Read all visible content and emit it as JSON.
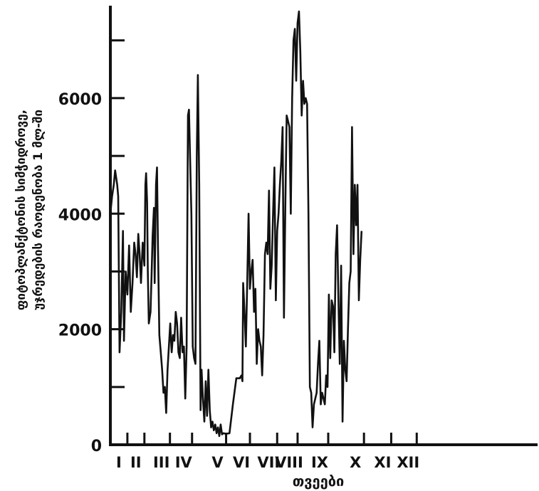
{
  "chart_data": {
    "type": "line",
    "title": "",
    "xlabel": "თვეები",
    "ylabel_lines": [
      "ფიტოპლანქტონის სიმჭიდროვე,",
      "უჯრედების რაოდენობა 1 მლ-ში"
    ],
    "x_unit": "month",
    "xlim": [
      0,
      12.55
    ],
    "ylim": [
      0,
      7600
    ],
    "y_ticks": [
      0,
      2000,
      4000,
      6000
    ],
    "y_minor_ticks": [
      1000,
      3000,
      5000,
      7000
    ],
    "x_ticks": [
      {
        "label": "I",
        "x": 0.5
      },
      {
        "label": "II",
        "x": 1.0
      },
      {
        "label": "III",
        "x": 1.75
      },
      {
        "label": "IV",
        "x": 2.4
      },
      {
        "label": "V",
        "x": 3.4
      },
      {
        "label": "VI",
        "x": 4.1
      },
      {
        "label": "VII",
        "x": 4.9
      },
      {
        "label": "VIII",
        "x": 5.5
      },
      {
        "label": "IX",
        "x": 6.4
      },
      {
        "label": "X",
        "x": 7.45
      },
      {
        "label": "XI",
        "x": 8.25
      },
      {
        "label": "XII",
        "x": 9.0
      }
    ],
    "grid": false,
    "series": [
      {
        "color": "#111111",
        "points": [
          [
            0.0,
            4000
          ],
          [
            0.05,
            4300
          ],
          [
            0.1,
            4500
          ],
          [
            0.14,
            4750
          ],
          [
            0.2,
            4500
          ],
          [
            0.23,
            4300
          ],
          [
            0.27,
            1600
          ],
          [
            0.32,
            2300
          ],
          [
            0.37,
            3700
          ],
          [
            0.4,
            1800
          ],
          [
            0.45,
            3000
          ],
          [
            0.5,
            2600
          ],
          [
            0.55,
            3450
          ],
          [
            0.6,
            2300
          ],
          [
            0.65,
            2800
          ],
          [
            0.7,
            3500
          ],
          [
            0.74,
            3300
          ],
          [
            0.78,
            2900
          ],
          [
            0.82,
            3650
          ],
          [
            0.86,
            3300
          ],
          [
            0.9,
            2800
          ],
          [
            0.95,
            3500
          ],
          [
            1.0,
            3100
          ],
          [
            1.03,
            4500
          ],
          [
            1.05,
            4700
          ],
          [
            1.08,
            4200
          ],
          [
            1.1,
            3000
          ],
          [
            1.13,
            2100
          ],
          [
            1.18,
            2300
          ],
          [
            1.21,
            2900
          ],
          [
            1.24,
            3600
          ],
          [
            1.28,
            4100
          ],
          [
            1.3,
            2800
          ],
          [
            1.34,
            4500
          ],
          [
            1.37,
            4800
          ],
          [
            1.4,
            3400
          ],
          [
            1.44,
            1900
          ],
          [
            1.48,
            1600
          ],
          [
            1.52,
            1300
          ],
          [
            1.56,
            900
          ],
          [
            1.6,
            1000
          ],
          [
            1.64,
            550
          ],
          [
            1.68,
            1300
          ],
          [
            1.72,
            1700
          ],
          [
            1.76,
            2100
          ],
          [
            1.8,
            1600
          ],
          [
            1.84,
            1900
          ],
          [
            1.88,
            1800
          ],
          [
            1.92,
            2300
          ],
          [
            1.96,
            2100
          ],
          [
            2.0,
            1600
          ],
          [
            2.04,
            1500
          ],
          [
            2.08,
            2200
          ],
          [
            2.12,
            1600
          ],
          [
            2.16,
            1700
          ],
          [
            2.2,
            800
          ],
          [
            2.24,
            1700
          ],
          [
            2.28,
            5700
          ],
          [
            2.31,
            5800
          ],
          [
            2.34,
            5000
          ],
          [
            2.38,
            4000
          ],
          [
            2.42,
            1700
          ],
          [
            2.46,
            1500
          ],
          [
            2.5,
            1400
          ],
          [
            2.54,
            5000
          ],
          [
            2.57,
            6400
          ],
          [
            2.61,
            4500
          ],
          [
            2.65,
            600
          ],
          [
            2.68,
            1300
          ],
          [
            2.72,
            800
          ],
          [
            2.76,
            400
          ],
          [
            2.8,
            1100
          ],
          [
            2.84,
            500
          ],
          [
            2.88,
            1300
          ],
          [
            2.92,
            600
          ],
          [
            2.96,
            300
          ],
          [
            3.0,
            400
          ],
          [
            3.04,
            250
          ],
          [
            3.08,
            350
          ],
          [
            3.12,
            200
          ],
          [
            3.16,
            300
          ],
          [
            3.2,
            150
          ],
          [
            3.24,
            350
          ],
          [
            3.28,
            180
          ],
          [
            3.32,
            200
          ],
          [
            3.4,
            190
          ],
          [
            3.5,
            200
          ],
          [
            3.6,
            700
          ],
          [
            3.7,
            1150
          ],
          [
            3.8,
            1150
          ],
          [
            3.85,
            1200
          ],
          [
            3.88,
            1100
          ],
          [
            3.9,
            2800
          ],
          [
            3.94,
            2300
          ],
          [
            3.98,
            1700
          ],
          [
            4.02,
            2800
          ],
          [
            4.06,
            4000
          ],
          [
            4.1,
            2700
          ],
          [
            4.14,
            3000
          ],
          [
            4.18,
            3200
          ],
          [
            4.22,
            2300
          ],
          [
            4.26,
            2700
          ],
          [
            4.3,
            1400
          ],
          [
            4.34,
            2000
          ],
          [
            4.38,
            1800
          ],
          [
            4.42,
            1700
          ],
          [
            4.46,
            1200
          ],
          [
            4.5,
            1900
          ],
          [
            4.54,
            3300
          ],
          [
            4.58,
            3500
          ],
          [
            4.62,
            3300
          ],
          [
            4.66,
            4400
          ],
          [
            4.7,
            2700
          ],
          [
            4.74,
            3100
          ],
          [
            4.78,
            4000
          ],
          [
            4.82,
            4800
          ],
          [
            4.86,
            2500
          ],
          [
            4.9,
            3700
          ],
          [
            4.94,
            4000
          ],
          [
            4.98,
            4500
          ],
          [
            5.02,
            4900
          ],
          [
            5.06,
            5500
          ],
          [
            5.1,
            2200
          ],
          [
            5.14,
            4100
          ],
          [
            5.18,
            5700
          ],
          [
            5.22,
            5600
          ],
          [
            5.26,
            5500
          ],
          [
            5.3,
            4000
          ],
          [
            5.34,
            6000
          ],
          [
            5.38,
            7000
          ],
          [
            5.42,
            7200
          ],
          [
            5.46,
            6300
          ],
          [
            5.5,
            7300
          ],
          [
            5.54,
            7500
          ],
          [
            5.58,
            6800
          ],
          [
            5.62,
            5700
          ],
          [
            5.66,
            6300
          ],
          [
            5.7,
            5900
          ],
          [
            5.74,
            6000
          ],
          [
            5.78,
            5900
          ],
          [
            5.82,
            4000
          ],
          [
            5.86,
            1000
          ],
          [
            5.9,
            900
          ],
          [
            5.94,
            300
          ],
          [
            5.98,
            700
          ],
          [
            6.02,
            800
          ],
          [
            6.06,
            900
          ],
          [
            6.1,
            1400
          ],
          [
            6.14,
            1800
          ],
          [
            6.18,
            700
          ],
          [
            6.22,
            900
          ],
          [
            6.26,
            800
          ],
          [
            6.3,
            700
          ],
          [
            6.34,
            1200
          ],
          [
            6.38,
            1000
          ],
          [
            6.42,
            2600
          ],
          [
            6.46,
            1500
          ],
          [
            6.5,
            2500
          ],
          [
            6.54,
            2400
          ],
          [
            6.58,
            1600
          ],
          [
            6.62,
            3300
          ],
          [
            6.66,
            3800
          ],
          [
            6.7,
            2500
          ],
          [
            6.74,
            1400
          ],
          [
            6.78,
            3100
          ],
          [
            6.82,
            400
          ],
          [
            6.86,
            1800
          ],
          [
            6.9,
            1300
          ],
          [
            6.94,
            1100
          ],
          [
            6.98,
            2000
          ],
          [
            7.02,
            2800
          ],
          [
            7.06,
            3000
          ],
          [
            7.1,
            5500
          ],
          [
            7.14,
            3300
          ],
          [
            7.18,
            4500
          ],
          [
            7.22,
            3800
          ],
          [
            7.26,
            4500
          ],
          [
            7.3,
            2500
          ],
          [
            7.34,
            3200
          ],
          [
            7.38,
            3700
          ]
        ]
      }
    ]
  }
}
